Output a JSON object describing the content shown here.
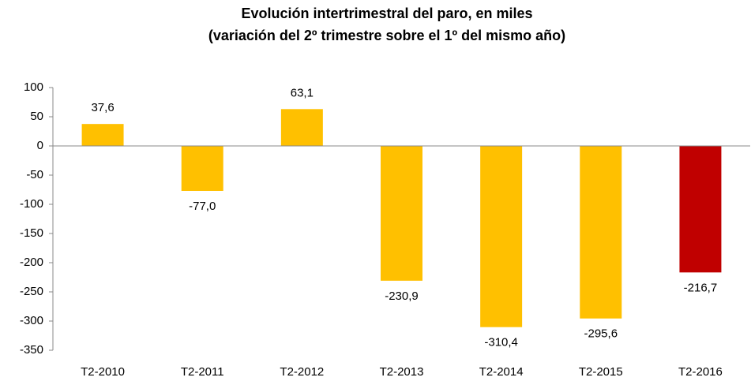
{
  "chart_data": {
    "type": "bar",
    "title": "Evolución intertrimestral del paro, en miles",
    "subtitle": "(variación del 2º trimestre  sobre el 1º del mismo año)",
    "categories": [
      "T2-2010",
      "T2-2011",
      "T2-2012",
      "T2-2013",
      "T2-2014",
      "T2-2015",
      "T2-2016"
    ],
    "values": [
      37.6,
      -77.0,
      63.1,
      -230.9,
      -310.4,
      -295.6,
      -216.7
    ],
    "value_labels": [
      "37,6",
      "-77,0",
      "63,1",
      "-230,9",
      "-310,4",
      "-295,6",
      "-216,7"
    ],
    "colors": [
      "#ffc000",
      "#ffc000",
      "#ffc000",
      "#ffc000",
      "#ffc000",
      "#ffc000",
      "#c00000"
    ],
    "ylim": [
      -350,
      100
    ],
    "yticks": [
      -350,
      -300,
      -250,
      -200,
      -150,
      -100,
      -50,
      0,
      50,
      100
    ],
    "grid": false
  }
}
